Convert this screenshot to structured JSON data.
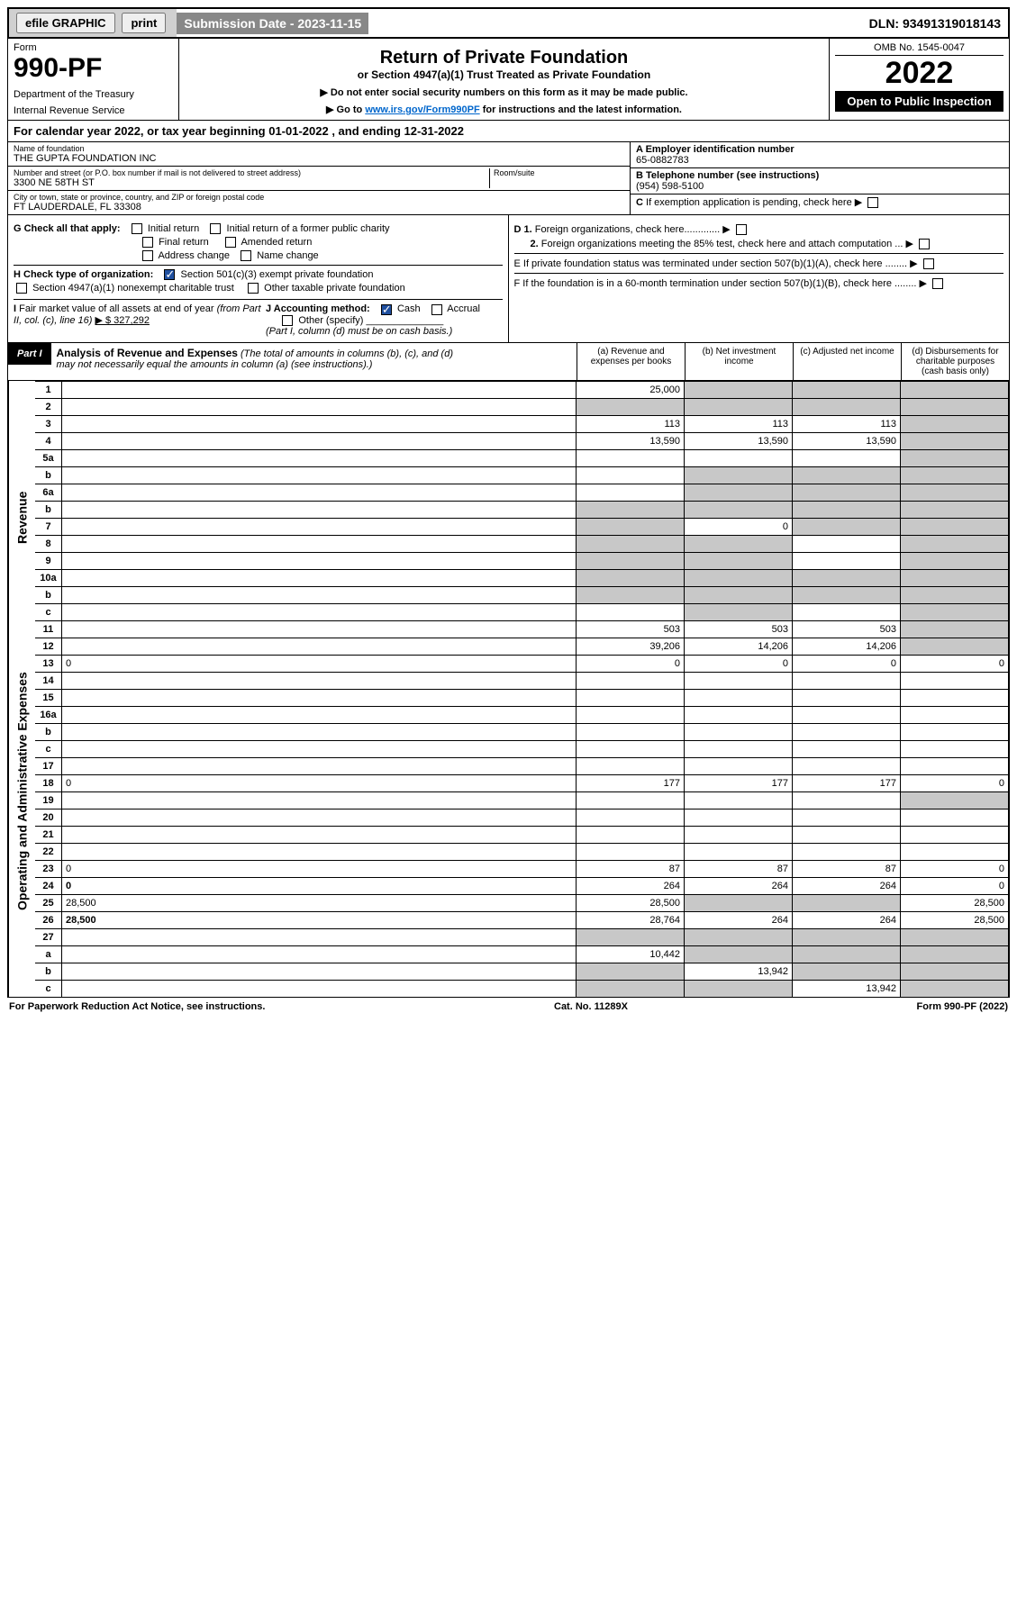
{
  "topbar": {
    "efile": "efile GRAPHIC",
    "print": "print",
    "submission": "Submission Date - 2023-11-15",
    "dln": "DLN: 93491319018143"
  },
  "header": {
    "form_label": "Form",
    "form_number": "990-PF",
    "dept": "Department of the Treasury",
    "irs": "Internal Revenue Service",
    "title": "Return of Private Foundation",
    "subtitle": "or Section 4947(a)(1) Trust Treated as Private Foundation",
    "instr1": "▶ Do not enter social security numbers on this form as it may be made public.",
    "instr2_pre": "▶ Go to ",
    "instr2_link": "www.irs.gov/Form990PF",
    "instr2_post": " for instructions and the latest information.",
    "omb": "OMB No. 1545-0047",
    "year": "2022",
    "open": "Open to Public Inspection"
  },
  "calyear": "For calendar year 2022, or tax year beginning 01-01-2022                           , and ending 12-31-2022",
  "info": {
    "name_label": "Name of foundation",
    "name": "THE GUPTA FOUNDATION INC",
    "addr_label": "Number and street (or P.O. box number if mail is not delivered to street address)",
    "addr": "3300 NE 58TH ST",
    "suite_label": "Room/suite",
    "city_label": "City or town, state or province, country, and ZIP or foreign postal code",
    "city": "FT LAUDERDALE, FL  33308",
    "ein_label": "A Employer identification number",
    "ein": "65-0882783",
    "phone_label": "B Telephone number (see instructions)",
    "phone": "(954) 598-5100",
    "pending": "C If exemption application is pending, check here"
  },
  "checks": {
    "g_label": "G Check all that apply:",
    "initial": "Initial return",
    "initial_former": "Initial return of a former public charity",
    "final": "Final return",
    "amended": "Amended return",
    "addr_change": "Address change",
    "name_change": "Name change",
    "h_label": "H Check type of organization:",
    "h_501c3": "Section 501(c)(3) exempt private foundation",
    "h_4947": "Section 4947(a)(1) nonexempt charitable trust",
    "h_other": "Other taxable private foundation",
    "i_label": "I Fair market value of all assets at end of year (from Part II, col. (c), line 16)",
    "i_val": "▶ $  327,292",
    "j_label": "J Accounting method:",
    "j_cash": "Cash",
    "j_accrual": "Accrual",
    "j_other": "Other (specify)",
    "j_note": "(Part I, column (d) must be on cash basis.)",
    "d1": "D 1. Foreign organizations, check here.............",
    "d2": "2. Foreign organizations meeting the 85% test, check here and attach computation ...",
    "e": "E  If private foundation status was terminated under section 507(b)(1)(A), check here ........",
    "f": "F  If the foundation is in a 60-month termination under section 507(b)(1)(B), check here ........"
  },
  "part1": {
    "badge": "Part I",
    "title": "Analysis of Revenue and Expenses",
    "title_note": "(The total of amounts in columns (b), (c), and (d) may not necessarily equal the amounts in column (a) (see instructions).)",
    "col_a": "(a)   Revenue and expenses per books",
    "col_b": "(b)   Net investment income",
    "col_c": "(c)   Adjusted net income",
    "col_d": "(d)  Disbursements for charitable purposes (cash basis only)"
  },
  "vlabels": {
    "rev": "Revenue",
    "exp": "Operating and Administrative Expenses"
  },
  "rows": [
    {
      "n": "1",
      "d": "",
      "a": "25,000",
      "b": "",
      "c": "",
      "bs": true,
      "cs": true,
      "ds": true
    },
    {
      "n": "2",
      "d": "",
      "a": "",
      "b": "",
      "c": "",
      "as": true,
      "bs": true,
      "cs": true,
      "ds": true
    },
    {
      "n": "3",
      "d": "",
      "a": "113",
      "b": "113",
      "c": "113",
      "ds": true
    },
    {
      "n": "4",
      "d": "",
      "a": "13,590",
      "b": "13,590",
      "c": "13,590",
      "ds": true
    },
    {
      "n": "5a",
      "d": "",
      "a": "",
      "b": "",
      "c": "",
      "ds": true
    },
    {
      "n": "b",
      "d": "",
      "a": "",
      "b": "",
      "c": "",
      "bs": true,
      "cs": true,
      "ds": true
    },
    {
      "n": "6a",
      "d": "",
      "a": "",
      "b": "",
      "c": "",
      "bs": true,
      "cs": true,
      "ds": true
    },
    {
      "n": "b",
      "d": "",
      "a": "",
      "b": "",
      "c": "",
      "as": true,
      "bs": true,
      "cs": true,
      "ds": true
    },
    {
      "n": "7",
      "d": "",
      "a": "",
      "b": "0",
      "c": "",
      "as": true,
      "cs": true,
      "ds": true
    },
    {
      "n": "8",
      "d": "",
      "a": "",
      "b": "",
      "c": "",
      "as": true,
      "bs": true,
      "ds": true
    },
    {
      "n": "9",
      "d": "",
      "a": "",
      "b": "",
      "c": "",
      "as": true,
      "bs": true,
      "ds": true
    },
    {
      "n": "10a",
      "d": "",
      "a": "",
      "b": "",
      "c": "",
      "as": true,
      "bs": true,
      "cs": true,
      "ds": true
    },
    {
      "n": "b",
      "d": "",
      "a": "",
      "b": "",
      "c": "",
      "as": true,
      "bs": true,
      "cs": true,
      "ds": true
    },
    {
      "n": "c",
      "d": "",
      "a": "",
      "b": "",
      "c": "",
      "bs": true,
      "ds": true
    },
    {
      "n": "11",
      "d": "",
      "a": "503",
      "b": "503",
      "c": "503",
      "ds": true
    },
    {
      "n": "12",
      "d": "",
      "a": "39,206",
      "b": "14,206",
      "c": "14,206",
      "bold": true,
      "ds": true
    },
    {
      "n": "13",
      "d": "0",
      "a": "0",
      "b": "0",
      "c": "0"
    },
    {
      "n": "14",
      "d": "",
      "a": "",
      "b": "",
      "c": ""
    },
    {
      "n": "15",
      "d": "",
      "a": "",
      "b": "",
      "c": ""
    },
    {
      "n": "16a",
      "d": "",
      "a": "",
      "b": "",
      "c": ""
    },
    {
      "n": "b",
      "d": "",
      "a": "",
      "b": "",
      "c": ""
    },
    {
      "n": "c",
      "d": "",
      "a": "",
      "b": "",
      "c": ""
    },
    {
      "n": "17",
      "d": "",
      "a": "",
      "b": "",
      "c": ""
    },
    {
      "n": "18",
      "d": "0",
      "a": "177",
      "b": "177",
      "c": "177"
    },
    {
      "n": "19",
      "d": "",
      "a": "",
      "b": "",
      "c": "",
      "ds": true
    },
    {
      "n": "20",
      "d": "",
      "a": "",
      "b": "",
      "c": ""
    },
    {
      "n": "21",
      "d": "",
      "a": "",
      "b": "",
      "c": ""
    },
    {
      "n": "22",
      "d": "",
      "a": "",
      "b": "",
      "c": ""
    },
    {
      "n": "23",
      "d": "0",
      "a": "87",
      "b": "87",
      "c": "87"
    },
    {
      "n": "24",
      "d": "0",
      "a": "264",
      "b": "264",
      "c": "264",
      "bold": true
    },
    {
      "n": "25",
      "d": "28,500",
      "a": "28,500",
      "b": "",
      "c": "",
      "bs": true,
      "cs": true
    },
    {
      "n": "26",
      "d": "28,500",
      "a": "28,764",
      "b": "264",
      "c": "264",
      "bold": true
    },
    {
      "n": "27",
      "d": "",
      "a": "",
      "b": "",
      "c": "",
      "as": true,
      "bs": true,
      "cs": true,
      "ds": true
    },
    {
      "n": "a",
      "d": "",
      "a": "10,442",
      "b": "",
      "c": "",
      "bold": true,
      "bs": true,
      "cs": true,
      "ds": true
    },
    {
      "n": "b",
      "d": "",
      "a": "",
      "b": "13,942",
      "c": "",
      "bold": true,
      "as": true,
      "cs": true,
      "ds": true
    },
    {
      "n": "c",
      "d": "",
      "a": "",
      "b": "",
      "c": "13,942",
      "bold": true,
      "as": true,
      "bs": true,
      "ds": true
    }
  ],
  "footer": {
    "left": "For Paperwork Reduction Act Notice, see instructions.",
    "center": "Cat. No. 11289X",
    "right": "Form 990-PF (2022)"
  }
}
